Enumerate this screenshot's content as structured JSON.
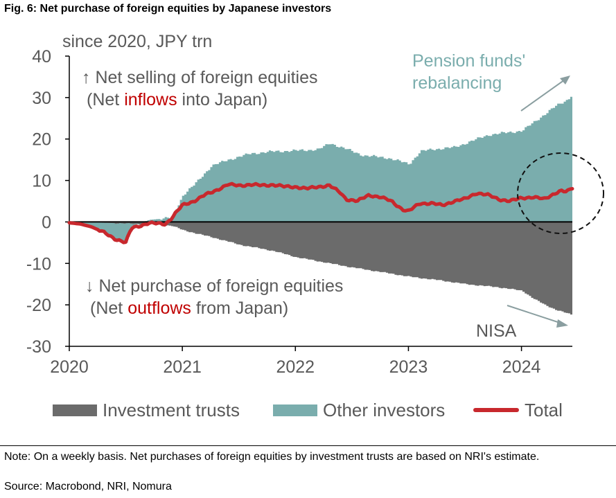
{
  "figure_title": "Fig. 6: Net purchase of foreign equities by Japanese investors",
  "unit_label": "since 2020, JPY trn",
  "note": "Note: On a weekly basis. Net purchases of foreign equities by investment trusts are based on NRI's estimate.",
  "source": "Source: Macrobond, NRI, Nomura",
  "colors": {
    "investment_trusts": "#6b6b6b",
    "other_investors": "#7aadad",
    "total": "#c8282d",
    "text": "#595959",
    "highlight_red": "#c00000"
  },
  "annotations": {
    "top_line1": "↑ Net selling of foreign equities",
    "top_line2_pre": "(Net ",
    "top_line2_hl": "inflows",
    "top_line2_post": " into Japan)",
    "bottom_line1": "↓ Net purchase of foreign equities",
    "bottom_line2_pre": "(Net ",
    "bottom_line2_hl": "outflows",
    "bottom_line2_post": " from Japan)",
    "pension_line1": "Pension funds'",
    "pension_line2": "rebalancing",
    "nisa": "NISA"
  },
  "legend": [
    {
      "label": "Investment trusts",
      "type": "swatch",
      "color": "#6b6b6b"
    },
    {
      "label": "Other investors",
      "type": "swatch",
      "color": "#7aadad"
    },
    {
      "label": "Total",
      "type": "line",
      "color": "#c8282d"
    }
  ],
  "chart_data": {
    "type": "area",
    "xlim": [
      2020.0,
      2024.45
    ],
    "ylim": [
      -30,
      40
    ],
    "yticks": [
      40,
      30,
      20,
      10,
      0,
      -10,
      -20,
      -30
    ],
    "xticks": [
      2020,
      2021,
      2022,
      2023,
      2024
    ],
    "grid": false,
    "legend_position": "bottom",
    "series": [
      {
        "name": "Investment trusts",
        "x": [
          2020.0,
          2020.3,
          2020.5,
          2020.7,
          2020.9,
          2021.0,
          2021.3,
          2021.5,
          2021.8,
          2022.0,
          2022.3,
          2022.5,
          2022.8,
          2023.0,
          2023.3,
          2023.5,
          2023.8,
          2024.0,
          2024.1,
          2024.2,
          2024.3,
          2024.45
        ],
        "values": [
          0,
          -0.2,
          -0.4,
          -0.6,
          -0.9,
          -2.0,
          -4.0,
          -5.5,
          -7.0,
          -8.5,
          -10.0,
          -11.0,
          -12.3,
          -13.2,
          -14.2,
          -15.0,
          -15.8,
          -16.6,
          -18.5,
          -20.0,
          -21.2,
          -22.5
        ]
      },
      {
        "name": "Other investors",
        "x": [
          2020.0,
          2020.2,
          2020.4,
          2020.5,
          2020.55,
          2020.7,
          2020.9,
          2021.0,
          2021.1,
          2021.25,
          2021.4,
          2021.6,
          2021.8,
          2022.0,
          2022.2,
          2022.3,
          2022.5,
          2022.6,
          2022.8,
          2023.0,
          2023.1,
          2023.2,
          2023.4,
          2023.55,
          2023.7,
          2023.85,
          2024.0,
          2024.1,
          2024.2,
          2024.3,
          2024.4,
          2024.45
        ],
        "values": [
          0,
          -1.5,
          -4.0,
          -5.0,
          -1.0,
          0.5,
          1.0,
          6.5,
          9.0,
          13.5,
          15.0,
          16.5,
          17.0,
          17.2,
          17.5,
          19.0,
          17.0,
          16.0,
          15.5,
          14.0,
          17.0,
          17.5,
          18.0,
          19.5,
          21.0,
          21.5,
          22.0,
          24.0,
          26.0,
          28.0,
          29.5,
          31.0
        ]
      },
      {
        "name": "Total",
        "x": [
          2020.0,
          2020.1,
          2020.2,
          2020.3,
          2020.4,
          2020.5,
          2020.55,
          2020.7,
          2020.85,
          2020.9,
          2021.0,
          2021.1,
          2021.2,
          2021.25,
          2021.4,
          2021.5,
          2021.6,
          2021.7,
          2021.8,
          2021.9,
          2022.0,
          2022.1,
          2022.2,
          2022.3,
          2022.4,
          2022.45,
          2022.55,
          2022.65,
          2022.75,
          2022.85,
          2022.95,
          2023.0,
          2023.1,
          2023.2,
          2023.3,
          2023.4,
          2023.5,
          2023.6,
          2023.7,
          2023.8,
          2023.9,
          2024.0,
          2024.1,
          2024.2,
          2024.3,
          2024.35,
          2024.4,
          2024.45
        ],
        "values": [
          -0.2,
          -0.5,
          -1.2,
          -2.5,
          -4.0,
          -5.0,
          -1.5,
          -0.3,
          -0.5,
          0.8,
          4.0,
          5.0,
          6.5,
          7.0,
          9.0,
          8.8,
          9.0,
          8.8,
          9.0,
          8.5,
          8.5,
          8.0,
          8.5,
          8.8,
          7.0,
          5.5,
          5.0,
          6.5,
          6.0,
          5.0,
          3.0,
          2.5,
          4.5,
          4.5,
          4.0,
          5.0,
          5.5,
          7.0,
          6.5,
          5.5,
          5.0,
          5.8,
          6.0,
          5.5,
          7.0,
          7.5,
          7.2,
          8.2
        ]
      }
    ]
  }
}
